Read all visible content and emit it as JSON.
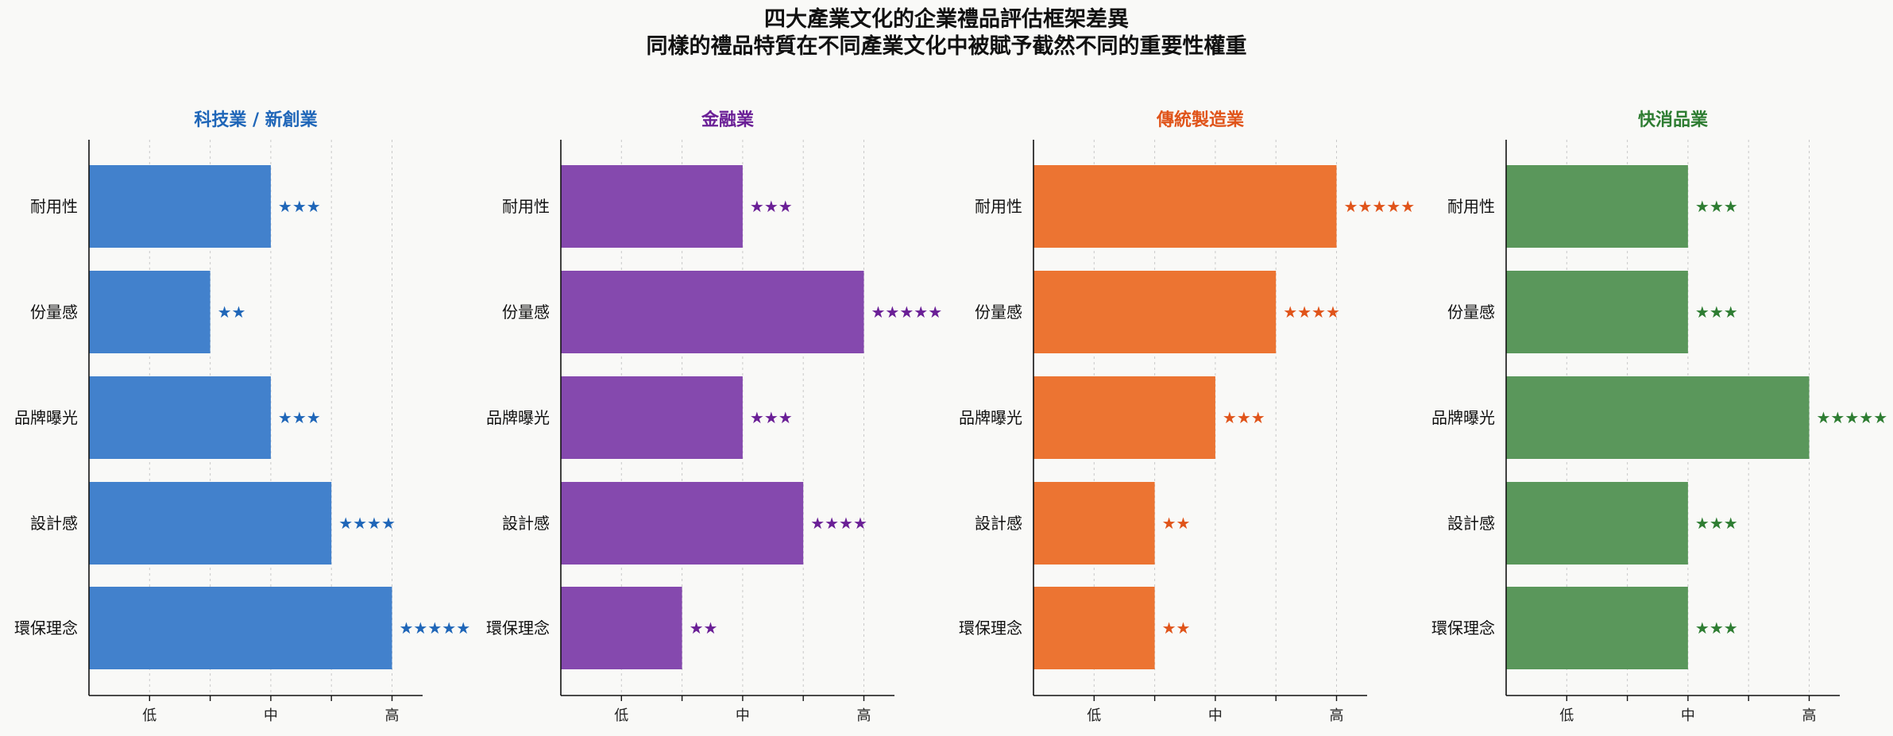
{
  "title_line1": "四大產業文化的企業禮品評估框架差異",
  "title_line2": "同樣的禮品特質在不同產業文化中被賦予截然不同的重要性權重",
  "chart_data": {
    "type": "bar",
    "orientation": "horizontal",
    "categories": [
      "耐用性",
      "份量感",
      "品牌曝光",
      "設計感",
      "環保理念"
    ],
    "x_tick_labels": [
      "低",
      "中",
      "高"
    ],
    "xlim": [
      0,
      5.5
    ],
    "grid": true,
    "panels": [
      {
        "title": "科技業 / 新創業",
        "color": "#4281cc",
        "label_color": "#1f66b8",
        "values": [
          3,
          2,
          3,
          4,
          5
        ],
        "star_labels": [
          "★★★",
          "★★",
          "★★★",
          "★★★★",
          "★★★★★"
        ]
      },
      {
        "title": "金融業",
        "color": "#8549ae",
        "label_color": "#6a1f96",
        "values": [
          3,
          5,
          3,
          4,
          2
        ],
        "star_labels": [
          "★★★",
          "★★★★★",
          "★★★",
          "★★★★",
          "★★"
        ]
      },
      {
        "title": "傳統製造業",
        "color": "#ec7432",
        "label_color": "#e0541a",
        "values": [
          5,
          4,
          3,
          2,
          2
        ],
        "star_labels": [
          "★★★★★",
          "★★★★",
          "★★★",
          "★★",
          "★★"
        ]
      },
      {
        "title": "快消品業",
        "color": "#5a975b",
        "label_color": "#2e7d32",
        "values": [
          3,
          3,
          5,
          3,
          3
        ],
        "star_labels": [
          "★★★",
          "★★★",
          "★★★★★",
          "★★★",
          "★★★"
        ]
      }
    ]
  }
}
